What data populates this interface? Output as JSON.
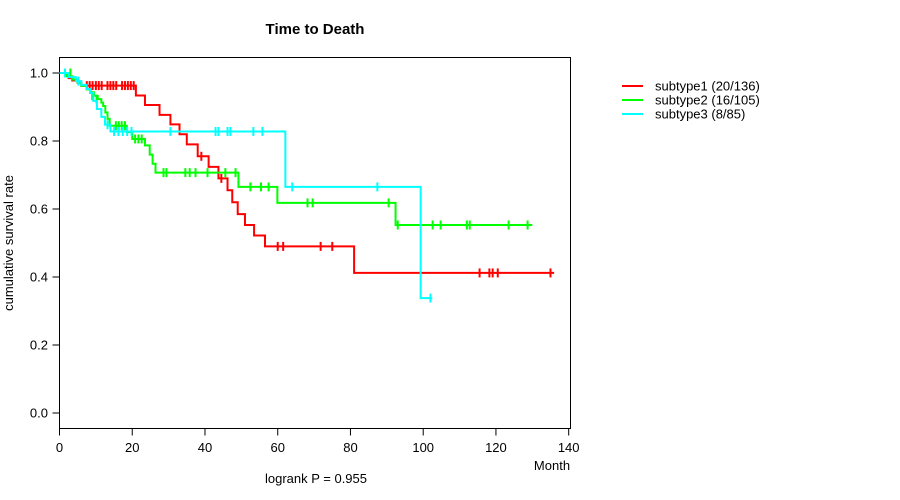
{
  "chart_data": {
    "type": "line",
    "subtype": "kaplan-meier-step-curves",
    "title": "Time to Death",
    "xlabel": "Month",
    "ylabel": "cumulative survival rate",
    "footnote": "logrank P = 0.955",
    "grid": "off",
    "legend_position": "right-outside-top",
    "x_axis": {
      "min": 0,
      "display_max": 140.5,
      "ticks": [
        0,
        20,
        40,
        60,
        80,
        100,
        120,
        140
      ]
    },
    "y_axis": {
      "min": 0,
      "max": 1,
      "ticks": [
        {
          "v": 0.0,
          "label": "0.0"
        },
        {
          "v": 0.2,
          "label": "0.2"
        },
        {
          "v": 0.4,
          "label": "0.4"
        },
        {
          "v": 0.6,
          "label": "0.6"
        },
        {
          "v": 0.8,
          "label": "0.8"
        },
        {
          "v": 1.0,
          "label": "1.0"
        }
      ]
    },
    "series": [
      {
        "name": "subtype1 (20/136)",
        "color": "#ff0000",
        "steps": [
          [
            0,
            1.0
          ],
          [
            1.5,
            0.993
          ],
          [
            2.5,
            0.985
          ],
          [
            3.5,
            0.978
          ],
          [
            5,
            0.971
          ],
          [
            6,
            0.963
          ],
          [
            21,
            0.934
          ],
          [
            23.5,
            0.906
          ],
          [
            27.5,
            0.877
          ],
          [
            30.5,
            0.849
          ],
          [
            33,
            0.82
          ],
          [
            35,
            0.79
          ],
          [
            38,
            0.755
          ],
          [
            41,
            0.724
          ],
          [
            43.7,
            0.69
          ],
          [
            46.2,
            0.655
          ],
          [
            47.5,
            0.62
          ],
          [
            49,
            0.585
          ],
          [
            51,
            0.553
          ],
          [
            53.5,
            0.522
          ],
          [
            56.5,
            0.49
          ],
          [
            81,
            0.412
          ]
        ],
        "end_time": 136,
        "censors": [
          [
            7.5,
            0.963
          ],
          [
            8.3,
            0.963
          ],
          [
            9.1,
            0.963
          ],
          [
            10,
            0.963
          ],
          [
            10.8,
            0.963
          ],
          [
            11.6,
            0.963
          ],
          [
            13.2,
            0.963
          ],
          [
            14,
            0.963
          ],
          [
            14.8,
            0.963
          ],
          [
            15.6,
            0.963
          ],
          [
            17.2,
            0.963
          ],
          [
            18,
            0.963
          ],
          [
            18.8,
            0.963
          ],
          [
            19.6,
            0.963
          ],
          [
            20.4,
            0.963
          ],
          [
            39,
            0.755
          ],
          [
            44.5,
            0.69
          ],
          [
            60,
            0.49
          ],
          [
            61.5,
            0.49
          ],
          [
            71.8,
            0.49
          ],
          [
            75,
            0.49
          ],
          [
            115.5,
            0.412
          ],
          [
            118.2,
            0.412
          ],
          [
            119.1,
            0.412
          ],
          [
            120.5,
            0.412
          ],
          [
            135,
            0.412
          ]
        ]
      },
      {
        "name": "subtype2 (16/105)",
        "color": "#00ff00",
        "steps": [
          [
            0,
            1.0
          ],
          [
            2,
            0.99
          ],
          [
            3.5,
            0.981
          ],
          [
            5,
            0.971
          ],
          [
            6,
            0.962
          ],
          [
            7.5,
            0.952
          ],
          [
            8.5,
            0.943
          ],
          [
            9.5,
            0.933
          ],
          [
            10.5,
            0.923
          ],
          [
            11.5,
            0.913
          ],
          [
            12,
            0.903
          ],
          [
            12.6,
            0.884
          ],
          [
            13.2,
            0.865
          ],
          [
            13.8,
            0.845
          ],
          [
            18.5,
            0.826
          ],
          [
            20,
            0.806
          ],
          [
            23.5,
            0.787
          ],
          [
            24.8,
            0.76
          ],
          [
            25.6,
            0.733
          ],
          [
            26.4,
            0.707
          ],
          [
            49.2,
            0.665
          ],
          [
            59.9,
            0.618
          ],
          [
            92.4,
            0.553
          ]
        ],
        "end_time": 130,
        "censors": [
          [
            3,
            1.0
          ],
          [
            9,
            0.933
          ],
          [
            10.2,
            0.923
          ],
          [
            15.5,
            0.845
          ],
          [
            16.3,
            0.845
          ],
          [
            17.1,
            0.845
          ],
          [
            18,
            0.845
          ],
          [
            20.8,
            0.806
          ],
          [
            21.7,
            0.806
          ],
          [
            22.6,
            0.806
          ],
          [
            28.6,
            0.707
          ],
          [
            29.4,
            0.707
          ],
          [
            34.6,
            0.707
          ],
          [
            35.8,
            0.707
          ],
          [
            37.4,
            0.707
          ],
          [
            40.7,
            0.707
          ],
          [
            45.6,
            0.707
          ],
          [
            48.4,
            0.707
          ],
          [
            52.5,
            0.665
          ],
          [
            55.4,
            0.665
          ],
          [
            57.5,
            0.665
          ],
          [
            68.2,
            0.618
          ],
          [
            69.6,
            0.618
          ],
          [
            90.5,
            0.618
          ],
          [
            93,
            0.553
          ],
          [
            102.6,
            0.553
          ],
          [
            104.8,
            0.553
          ],
          [
            112,
            0.553
          ],
          [
            112.8,
            0.553
          ],
          [
            123.5,
            0.553
          ],
          [
            128.7,
            0.553
          ]
        ]
      },
      {
        "name": "subtype3 (8/85)",
        "color": "#00ffff",
        "steps": [
          [
            0,
            1.0
          ],
          [
            2.5,
            0.988
          ],
          [
            4.5,
            0.976
          ],
          [
            6,
            0.965
          ],
          [
            7.4,
            0.953
          ],
          [
            8.4,
            0.941
          ],
          [
            9.3,
            0.918
          ],
          [
            10.3,
            0.894
          ],
          [
            11.5,
            0.871
          ],
          [
            12.5,
            0.848
          ],
          [
            14,
            0.828
          ],
          [
            62.1,
            0.665
          ],
          [
            99.3,
            0.338
          ]
        ],
        "end_time": 102.5,
        "censors": [
          [
            1.5,
            1.0
          ],
          [
            5.2,
            0.976
          ],
          [
            13.2,
            0.848
          ],
          [
            15,
            0.828
          ],
          [
            16.2,
            0.828
          ],
          [
            17.4,
            0.828
          ],
          [
            18.6,
            0.828
          ],
          [
            19.8,
            0.828
          ],
          [
            30.5,
            0.828
          ],
          [
            42.9,
            0.828
          ],
          [
            43.7,
            0.828
          ],
          [
            46.2,
            0.828
          ],
          [
            47,
            0.828
          ],
          [
            53.3,
            0.828
          ],
          [
            55.8,
            0.828
          ],
          [
            64,
            0.665
          ],
          [
            87.4,
            0.665
          ],
          [
            102,
            0.338
          ]
        ]
      }
    ]
  }
}
